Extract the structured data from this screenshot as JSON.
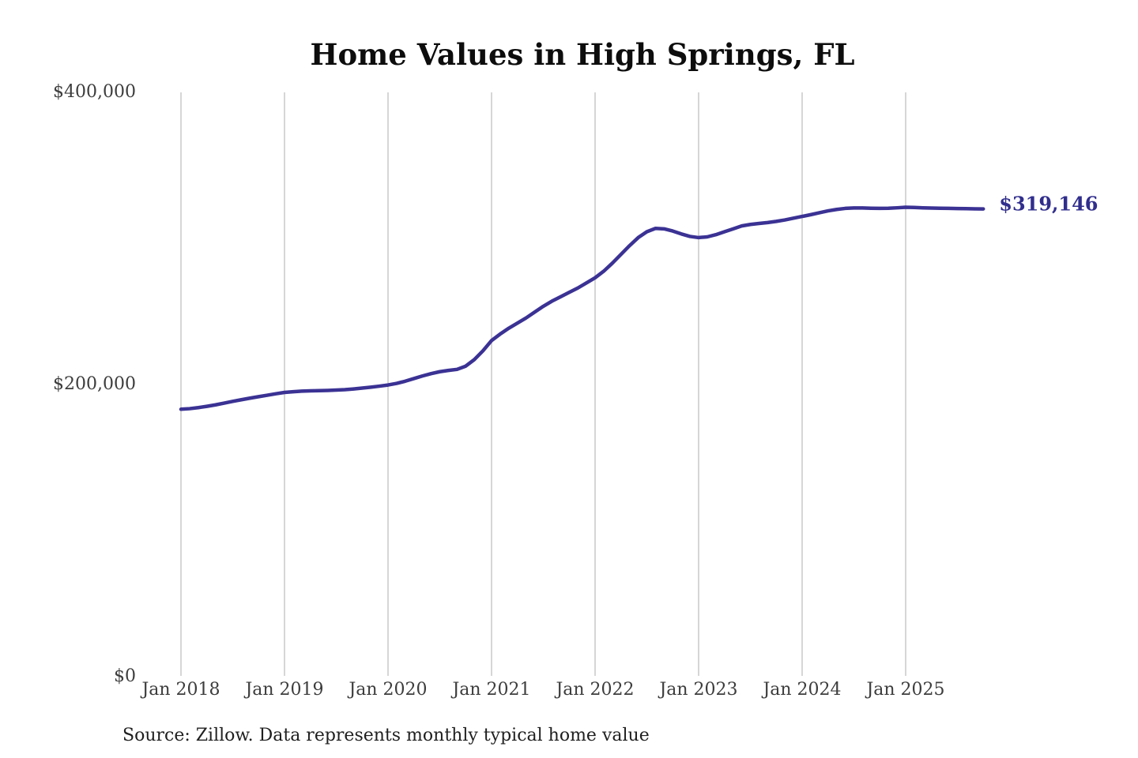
{
  "chart": {
    "title": "Home Values in High Springs, FL",
    "source": "Source: Zillow. Data represents monthly typical home value",
    "colors": {
      "line": "#3b3294",
      "annotation": "#312e8d",
      "grid": "#c8c8c8",
      "axis_text": "#3d3d3d",
      "title_text": "#0d0d0d",
      "background": "#ffffff"
    }
  },
  "chart_data": {
    "type": "line",
    "title": "Home Values in High Springs, FL",
    "source": "Source: Zillow. Data represents monthly typical home value",
    "frequency": "monthly",
    "x_start": "Jan 2018",
    "x_end": "Oct 2025",
    "x_tick_labels": [
      "Jan 2018",
      "Jan 2019",
      "Jan 2020",
      "Jan 2021",
      "Jan 2022",
      "Jan 2023",
      "Jan 2024",
      "Jan 2025"
    ],
    "y_ticks": [
      {
        "label": "$0",
        "value": 0
      },
      {
        "label": "$200,000",
        "value": 200000
      },
      {
        "label": "$400,000",
        "value": 400000
      }
    ],
    "ylim": [
      0,
      400000
    ],
    "grid": "vertical-only",
    "legend": "none",
    "annotation": "$319,146",
    "final_value": 319146,
    "series": [
      {
        "name": "Typical home value",
        "values": [
          182000,
          182400,
          183100,
          184000,
          185000,
          186200,
          187400,
          188500,
          189600,
          190600,
          191600,
          192600,
          193500,
          194000,
          194400,
          194600,
          194700,
          194900,
          195100,
          195400,
          195900,
          196500,
          197100,
          197800,
          198600,
          199700,
          201200,
          203000,
          204800,
          206400,
          207700,
          208600,
          209300,
          211500,
          216000,
          222000,
          229000,
          233500,
          237500,
          241000,
          244500,
          248500,
          252500,
          256000,
          259000,
          262000,
          265000,
          268500,
          272000,
          276500,
          282000,
          288000,
          294000,
          299500,
          303500,
          305800,
          305500,
          304000,
          302000,
          300300,
          299500,
          300000,
          301500,
          303500,
          305500,
          307500,
          308500,
          309200,
          309800,
          310600,
          311600,
          312800,
          314000,
          315200,
          316500,
          317800,
          318800,
          319500,
          319800,
          319800,
          319600,
          319500,
          319600,
          319900,
          320300,
          320100,
          319900,
          319700,
          319600,
          319500,
          319400,
          319300,
          319200,
          319146
        ]
      }
    ]
  }
}
